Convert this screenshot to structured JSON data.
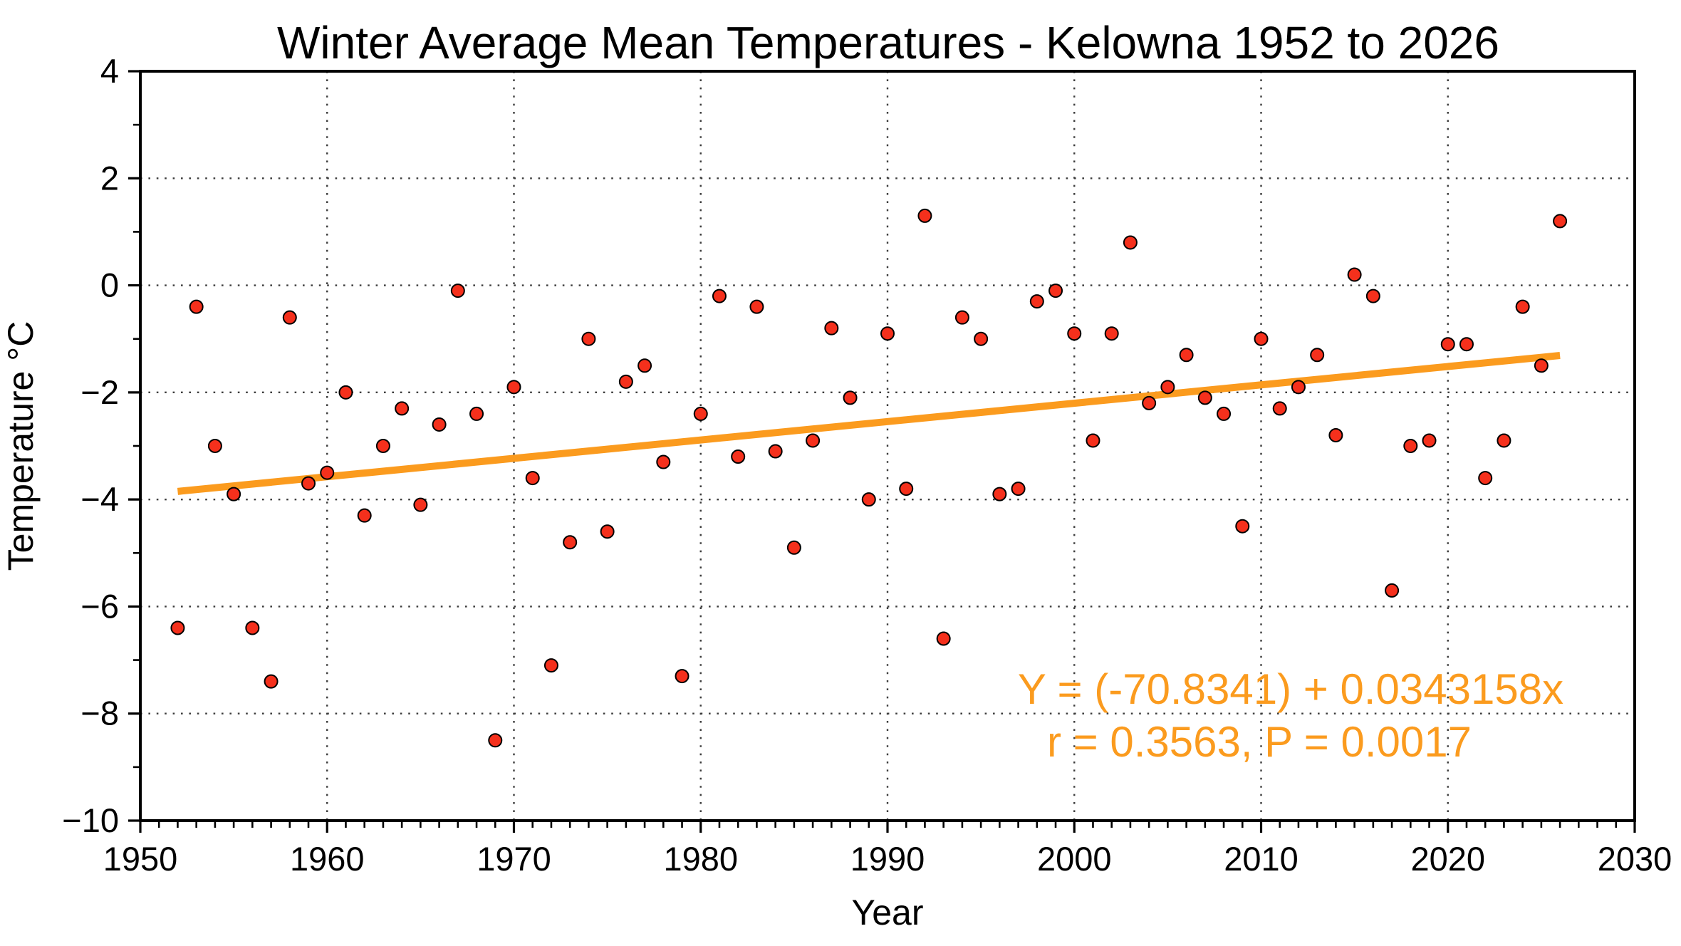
{
  "page": {
    "background": "#ffffff"
  },
  "chart_data": {
    "type": "scatter",
    "title": "Winter Average Mean Temperatures - Kelowna 1952 to 2026",
    "xlabel": "Year",
    "ylabel": "Temperature °C",
    "xlim": [
      1950,
      2030
    ],
    "ylim": [
      -10,
      4
    ],
    "x_major_ticks": [
      1950,
      1960,
      1970,
      1980,
      1990,
      2000,
      2010,
      2020,
      2030
    ],
    "x_tick_labels": [
      "1950",
      "1960",
      "1970",
      "1980",
      "1990",
      "2000",
      "2010",
      "2020",
      "2030"
    ],
    "x_minor_tick_step": 1,
    "y_major_ticks": [
      4,
      2,
      0,
      -2,
      -4,
      -6,
      -8,
      -10
    ],
    "y_tick_labels": [
      "4",
      "2",
      "0",
      "−2",
      "−4",
      "−6",
      "−8",
      "−10"
    ],
    "y_minor_ticks": [
      3,
      1,
      -1,
      -3,
      -5,
      -7,
      -9
    ],
    "grid": {
      "style": "dotted",
      "vertical_at": [
        1960,
        1970,
        1980,
        1990,
        2000,
        2010,
        2020
      ],
      "horizontal_at": [
        2,
        0,
        -2,
        -4,
        -6,
        -8
      ],
      "color": "#3c3c3c"
    },
    "legend": "none",
    "points": [
      [
        1952,
        -6.4
      ],
      [
        1953,
        -0.4
      ],
      [
        1954,
        -3.0
      ],
      [
        1955,
        -3.9
      ],
      [
        1956,
        -6.4
      ],
      [
        1957,
        -7.4
      ],
      [
        1958,
        -0.6
      ],
      [
        1959,
        -3.7
      ],
      [
        1960,
        -3.5
      ],
      [
        1961,
        -2.0
      ],
      [
        1962,
        -4.3
      ],
      [
        1963,
        -3.0
      ],
      [
        1964,
        -2.3
      ],
      [
        1965,
        -4.1
      ],
      [
        1966,
        -2.6
      ],
      [
        1967,
        -0.1
      ],
      [
        1968,
        -2.4
      ],
      [
        1969,
        -8.5
      ],
      [
        1970,
        -1.9
      ],
      [
        1971,
        -3.6
      ],
      [
        1972,
        -7.1
      ],
      [
        1973,
        -4.8
      ],
      [
        1974,
        -1.0
      ],
      [
        1975,
        -4.6
      ],
      [
        1976,
        -1.8
      ],
      [
        1977,
        -1.5
      ],
      [
        1978,
        -3.3
      ],
      [
        1979,
        -7.3
      ],
      [
        1980,
        -2.4
      ],
      [
        1981,
        -0.2
      ],
      [
        1982,
        -3.2
      ],
      [
        1983,
        -0.4
      ],
      [
        1984,
        -3.1
      ],
      [
        1985,
        -4.9
      ],
      [
        1986,
        -2.9
      ],
      [
        1987,
        -0.8
      ],
      [
        1988,
        -2.1
      ],
      [
        1989,
        -4.0
      ],
      [
        1990,
        -0.9
      ],
      [
        1991,
        -3.8
      ],
      [
        1992,
        1.3
      ],
      [
        1993,
        -6.6
      ],
      [
        1994,
        -0.6
      ],
      [
        1995,
        -1.0
      ],
      [
        1996,
        -3.9
      ],
      [
        1997,
        -3.8
      ],
      [
        1998,
        -0.3
      ],
      [
        1999,
        -0.1
      ],
      [
        2000,
        -0.9
      ],
      [
        2001,
        -2.9
      ],
      [
        2002,
        -0.9
      ],
      [
        2003,
        0.8
      ],
      [
        2004,
        -2.2
      ],
      [
        2005,
        -1.9
      ],
      [
        2006,
        -1.3
      ],
      [
        2007,
        -2.1
      ],
      [
        2008,
        -2.4
      ],
      [
        2009,
        -4.5
      ],
      [
        2010,
        -1.0
      ],
      [
        2011,
        -2.3
      ],
      [
        2012,
        -1.9
      ],
      [
        2013,
        -1.3
      ],
      [
        2014,
        -2.8
      ],
      [
        2015,
        0.2
      ],
      [
        2016,
        -0.2
      ],
      [
        2017,
        -5.7
      ],
      [
        2018,
        -3.0
      ],
      [
        2019,
        -2.9
      ],
      [
        2020,
        -1.1
      ],
      [
        2021,
        -1.1
      ],
      [
        2022,
        -3.6
      ],
      [
        2023,
        -2.9
      ],
      [
        2024,
        -0.4
      ],
      [
        2025,
        -1.5
      ],
      [
        2026,
        1.2
      ]
    ],
    "point_style": {
      "fill": "#F5301C",
      "stroke": "#000000",
      "radius": 9,
      "stroke_width": 2
    },
    "trend_line": {
      "slope": 0.0343158,
      "intercept": -70.8341,
      "x_start": 1952,
      "x_end": 2026,
      "color": "#FB9B1E",
      "width": 10
    },
    "annotation": {
      "line1": "Y = (-70.8341) + 0.0343158x",
      "line2": "r = 0.3563, P = 0.0017",
      "color": "#FB9B1E"
    }
  },
  "colors": {
    "accent_orange": "#FB9B1E",
    "point_red": "#F5301C",
    "axis_black": "#000000",
    "grid_gray": "#3c3c3c"
  }
}
